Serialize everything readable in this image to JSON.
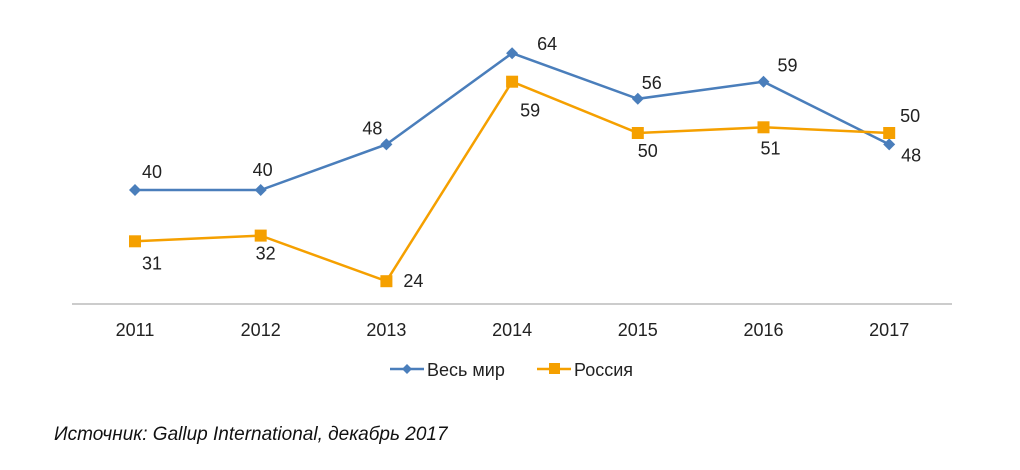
{
  "chart_data": {
    "type": "line",
    "categories": [
      "2011",
      "2012",
      "2013",
      "2014",
      "2015",
      "2016",
      "2017"
    ],
    "series": [
      {
        "name": "Весь мир",
        "values": [
          40,
          40,
          48,
          64,
          56,
          59,
          48
        ],
        "color": "#4a7ebb",
        "marker": "diamond"
      },
      {
        "name": "Россия",
        "values": [
          31,
          32,
          24,
          59,
          50,
          51,
          50
        ],
        "color": "#f5a000",
        "marker": "square"
      }
    ],
    "title": "",
    "xlabel": "",
    "ylabel": "",
    "ylim": [
      20,
      70
    ],
    "grid": false,
    "legend": "bottom",
    "data_labels": true
  },
  "source": "Источник: Gallup International, декабрь 2017"
}
